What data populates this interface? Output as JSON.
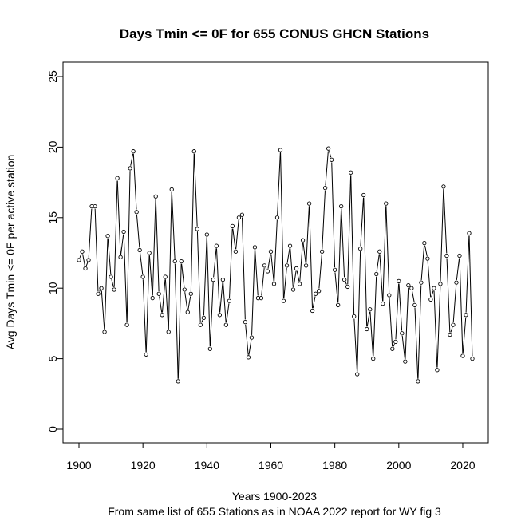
{
  "chart_data": {
    "type": "line",
    "title": "Days Tmin <= 0F for 655 CONUS GHCN Stations",
    "xlabel": "Years 1900-2023",
    "subtitle": "From same list of 655 Stations as in NOAA 2022 report for WY fig 3",
    "ylabel": "Avg Days Tmin <= 0F per active station",
    "xlim": [
      1900,
      2023
    ],
    "ylim": [
      0,
      25
    ],
    "x_ticks": [
      1900,
      1920,
      1940,
      1960,
      1980,
      2000,
      2020
    ],
    "y_ticks": [
      0,
      5,
      10,
      15,
      20,
      25
    ],
    "x_start": 1900,
    "values": [
      12.0,
      12.6,
      11.4,
      12.0,
      15.8,
      15.8,
      9.6,
      10.0,
      6.9,
      13.7,
      10.8,
      9.9,
      17.8,
      12.2,
      14.0,
      7.4,
      18.5,
      19.7,
      15.4,
      12.7,
      10.8,
      5.3,
      12.5,
      9.3,
      16.5,
      9.6,
      8.1,
      10.8,
      6.9,
      17.0,
      11.9,
      3.4,
      11.9,
      9.9,
      8.3,
      9.6,
      19.7,
      14.2,
      7.4,
      7.9,
      13.8,
      5.7,
      10.6,
      13.0,
      8.1,
      10.6,
      7.4,
      9.1,
      14.4,
      12.6,
      15.0,
      15.2,
      7.6,
      5.1,
      6.5,
      12.9,
      9.3,
      9.3,
      11.6,
      11.2,
      12.6,
      10.3,
      15.0,
      19.8,
      9.1,
      11.6,
      13.0,
      9.9,
      11.4,
      10.3,
      13.4,
      11.6,
      16.0,
      8.4,
      9.6,
      9.8,
      12.6,
      17.1,
      19.9,
      19.1,
      11.3,
      8.8,
      15.8,
      10.6,
      10.1,
      18.2,
      8.0,
      3.9,
      12.8,
      16.6,
      7.1,
      8.5,
      5.0,
      11.0,
      12.6,
      8.9,
      16.0,
      9.5,
      5.7,
      6.2,
      10.5,
      6.8,
      4.8,
      10.2,
      10.0,
      8.8,
      3.4,
      10.4,
      13.2,
      12.1,
      9.2,
      10.0,
      4.2,
      10.3,
      17.2,
      12.3,
      6.7,
      7.4,
      10.4,
      12.3,
      5.2,
      8.1,
      13.9,
      5.0
    ]
  }
}
